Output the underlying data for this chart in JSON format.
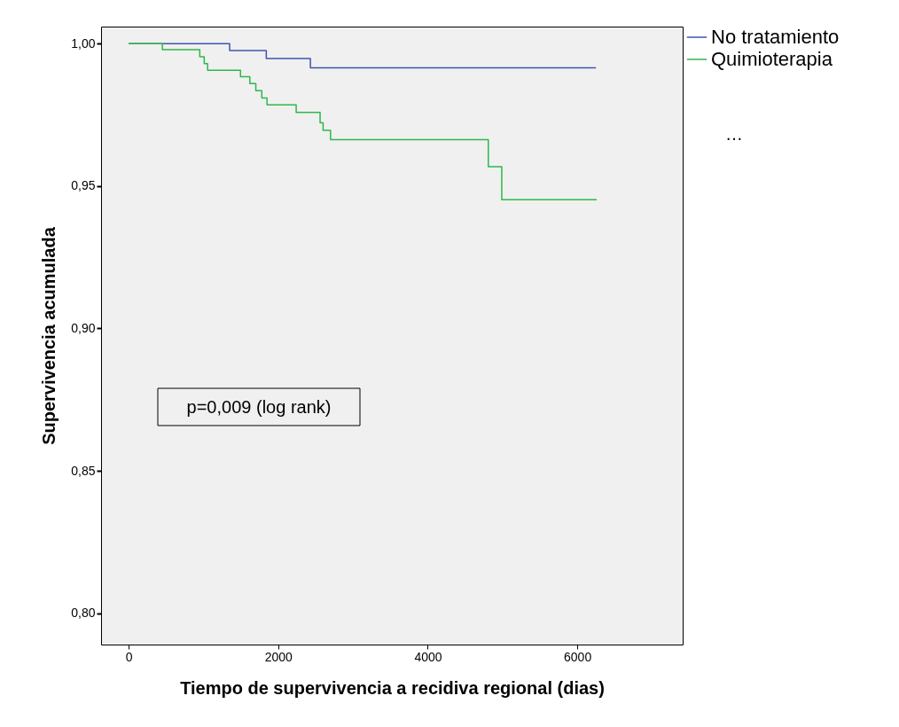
{
  "chart_data": {
    "type": "step",
    "xlabel": "Tiempo de supervivencia a recidiva regional (dias)",
    "ylabel": "Supervivencia acumulada",
    "xlim": [
      -370,
      7410
    ],
    "xticks": [
      0,
      2000,
      4000,
      6000
    ],
    "ylim": [
      0.789,
      1.006
    ],
    "yticks": [
      {
        "value": 0.8,
        "label": "0,80"
      },
      {
        "value": 0.85,
        "label": "0,85"
      },
      {
        "value": 0.9,
        "label": "0,90"
      },
      {
        "value": 0.95,
        "label": "0,95"
      },
      {
        "value": 1.0,
        "label": "1,00"
      }
    ],
    "series": [
      {
        "name": "No tratamiento",
        "color": "#3e54b0",
        "x": [
          0,
          1350,
          1840,
          2430,
          6250
        ],
        "values": [
          1.0,
          0.9976,
          0.9948,
          0.9915,
          0.9915
        ]
      },
      {
        "name": "Quimioterapia",
        "color": "#2db84a",
        "x": [
          0,
          450,
          950,
          1010,
          1055,
          1495,
          1620,
          1700,
          1780,
          1850,
          2240,
          2560,
          2600,
          2700,
          4810,
          4990,
          6260
        ],
        "values": [
          1.0,
          0.9979,
          0.9954,
          0.993,
          0.9907,
          0.9884,
          0.986,
          0.9835,
          0.9809,
          0.9785,
          0.9759,
          0.9722,
          0.9696,
          0.9663,
          0.9568,
          0.9452,
          0.9452
        ]
      }
    ],
    "annotations": [
      "p=0,009 (log rank)",
      "…"
    ],
    "legend": "top right",
    "grid": false
  }
}
